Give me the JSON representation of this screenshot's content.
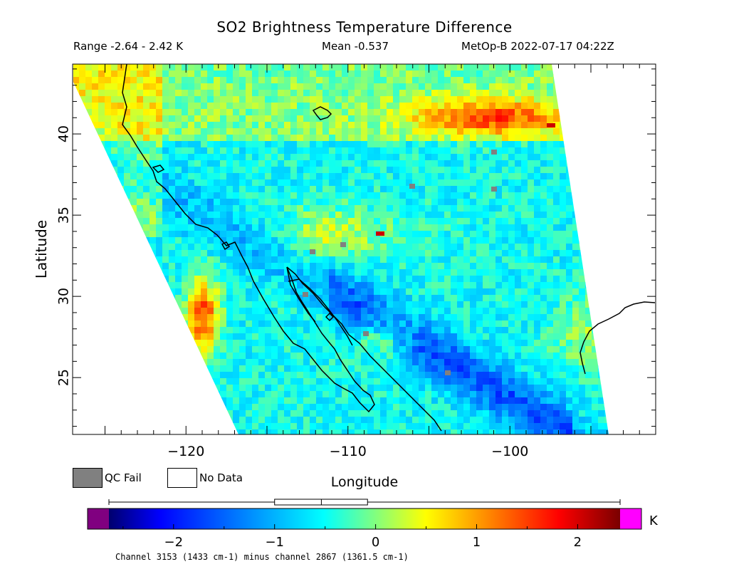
{
  "header": {
    "title": "SO2 Brightness Temperature Difference",
    "range_text": "Range -2.64 - 2.42 K",
    "mean_text": "Mean -0.537",
    "satellite_text": "MetOp-B 2022-07-17 04:22Z"
  },
  "axes": {
    "x_label": "Longitude",
    "y_label": "Latitude",
    "x_ticks": [
      "-120",
      "-110",
      "-100"
    ],
    "y_ticks": [
      "25",
      "30",
      "35",
      "40"
    ],
    "lon_range": [
      -127,
      -91
    ],
    "lat_range": [
      21.5,
      44.3
    ]
  },
  "legend": {
    "qc_fail_label": "QC Fail",
    "qc_fail_color": "#808080",
    "no_data_label": "No Data",
    "no_data_color": "#ffffff"
  },
  "colorbar": {
    "unit": "K",
    "ticks": [
      "-2",
      "-1",
      "0",
      "1",
      "2"
    ],
    "min": -2.64,
    "max": 2.42,
    "under_color": "#800080",
    "over_color": "#ff00ff",
    "boxplot": {
      "whisker_low": -2.64,
      "q1": -1.0,
      "median": -0.537,
      "q3": -0.08,
      "whisker_high": 2.42
    }
  },
  "footer": {
    "text": "Channel 3153 (1433 cm-1) minus channel 2867 (1361.5 cm-1)"
  },
  "map_data": {
    "description_field_colors": [
      "#00008f",
      "#0000ff",
      "#00ffff",
      "#80ff80",
      "#ffff00",
      "#ff8000",
      "#ff0000",
      "#800000"
    ],
    "coastline_color": "#000000"
  }
}
